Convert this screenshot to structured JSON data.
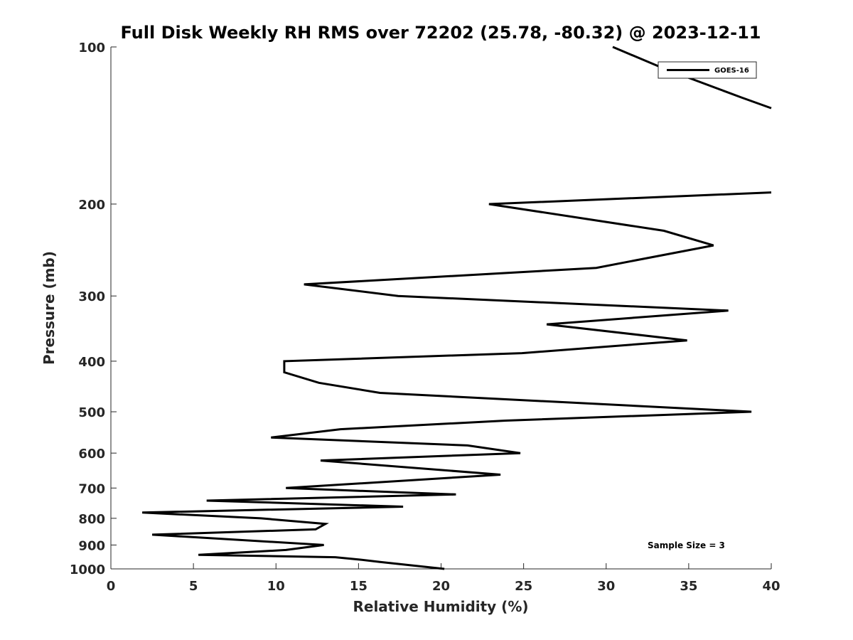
{
  "chart_data": {
    "type": "line",
    "title": "Full Disk Weekly RH RMS over 72202 (25.78, -80.32) @ 2023-12-11",
    "xlabel": "Relative Humidity (%)",
    "ylabel": "Pressure (mb)",
    "xlim": [
      0,
      40
    ],
    "ylim": [
      100,
      1000
    ],
    "yscale": "log",
    "reverse_y": true,
    "xticks": [
      0,
      5,
      10,
      15,
      20,
      25,
      30,
      35,
      40
    ],
    "xtick_labels": [
      "0",
      "5",
      "10",
      "15",
      "20",
      "25",
      "30",
      "35",
      "40"
    ],
    "yticks": [
      100,
      200,
      300,
      400,
      500,
      600,
      700,
      800,
      900,
      1000
    ],
    "ytick_labels": [
      "100",
      "200",
      "300",
      "400",
      "500",
      "600",
      "700",
      "800",
      "900",
      "1000"
    ],
    "grid": false,
    "legend": {
      "entries": [
        "GOES-16"
      ],
      "placement": "top-right"
    },
    "annotation": "Sample Size = 3",
    "series": [
      {
        "name": "GOES-16",
        "color": "#000000",
        "segments": [
          {
            "x": [
              30.4,
              33.5,
              38.2,
              40.0
            ],
            "pressure": [
              100,
              110,
              125,
              131
            ]
          },
          {
            "x": [
              40.0,
              22.9,
              33.5,
              36.5,
              29.4,
              11.7,
              17.4,
              37.4,
              26.4,
              34.9,
              24.9,
              10.5,
              10.5,
              12.6,
              16.3,
              38.8,
              23.9,
              13.9,
              9.7,
              21.6,
              24.8,
              12.7,
              23.6,
              10.6,
              20.9,
              5.8,
              17.7,
              1.9,
              9.1,
              13.0,
              12.4,
              2.5,
              12.9,
              10.6,
              5.3,
              13.6,
              15.1,
              16.3,
              20.2
            ],
            "pressure": [
              190,
              200,
              225,
              240,
              265,
              285,
              300,
              320,
              340,
              365,
              386,
              400,
              420,
              440,
              460,
              500,
              520,
              540,
              560,
              580,
              600,
              620,
              660,
              700,
              720,
              740,
              760,
              780,
              800,
              820,
              840,
              860,
              900,
              920,
              940,
              950,
              960,
              970,
              1000
            ]
          }
        ]
      }
    ]
  }
}
